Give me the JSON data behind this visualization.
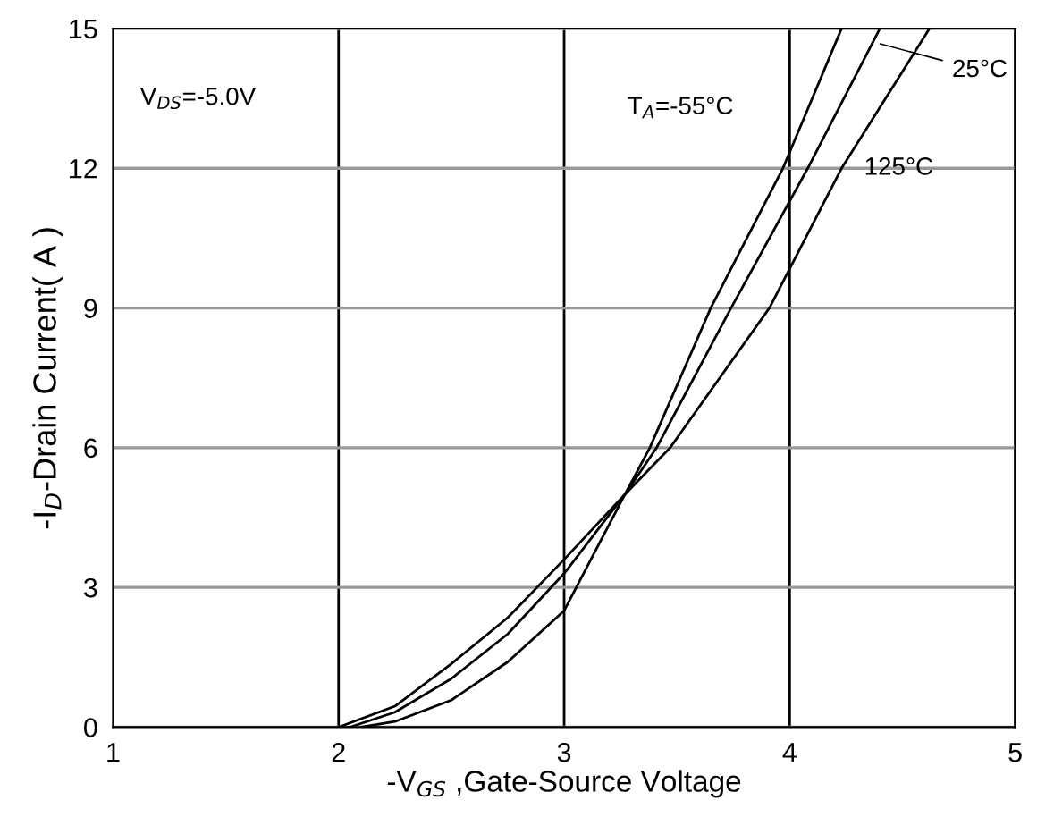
{
  "chart_data": {
    "type": "line",
    "xlabel": "-V$_{GS}$ ,Gate-Source Voltage",
    "ylabel": "-I$_{D}$-Drain Current( A )",
    "xlim": [
      1,
      5
    ],
    "xticks": [
      1,
      2,
      3,
      4,
      5
    ],
    "ylim": [
      0,
      15
    ],
    "yticks": [
      0,
      3,
      6,
      9,
      12,
      15
    ],
    "grid": true,
    "marker": "none",
    "line_style": "solid",
    "annotations": [
      "V$_{DS}$=-5.0V"
    ],
    "series": [
      {
        "name": "T$_{A}$=-55°C",
        "color": "#000000",
        "x": [
          2.1,
          2.25,
          2.5,
          2.75,
          3,
          3.27,
          3.38,
          3.65,
          3.97,
          4.23
        ],
        "values": [
          0,
          0.12,
          0.58,
          1.4,
          2.5,
          5.0,
          6,
          9,
          12,
          15
        ]
      },
      {
        "name": "25°C",
        "color": "#000000",
        "x": [
          2.05,
          2.25,
          2.5,
          2.75,
          3,
          3.27,
          3.41,
          3.74,
          4.08,
          4.4
        ],
        "values": [
          0,
          0.32,
          1.04,
          2.0,
          3.3,
          5.0,
          6,
          9,
          12,
          15
        ]
      },
      {
        "name": "125°C",
        "color": "#000000",
        "x": [
          2.0,
          2.25,
          2.5,
          2.75,
          3,
          3.27,
          3.47,
          3.91,
          4.23,
          4.62
        ],
        "values": [
          0,
          0.45,
          1.36,
          2.35,
          3.6,
          5.0,
          6,
          9,
          12,
          15
        ]
      }
    ]
  }
}
